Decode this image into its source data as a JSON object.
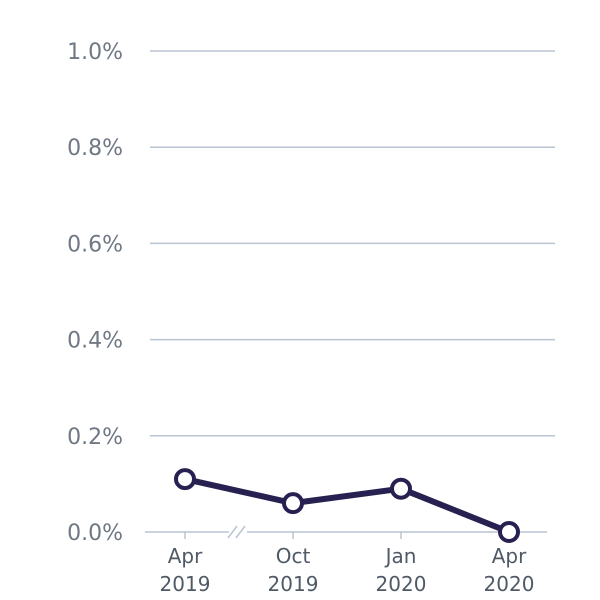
{
  "chart_data": {
    "type": "line",
    "title": "",
    "xlabel": "",
    "ylabel": "",
    "categories": [
      [
        "Apr",
        "2019"
      ],
      [
        "Oct",
        "2019"
      ],
      [
        "Jan",
        "2020"
      ],
      [
        "Apr",
        "2020"
      ]
    ],
    "series": [
      {
        "name": "",
        "values": [
          0.11,
          0.06,
          0.09,
          0.0
        ]
      }
    ],
    "ylim": [
      0,
      1.0
    ],
    "yticks": [
      0,
      0.2,
      0.4,
      0.6,
      0.8,
      1.0
    ],
    "ytick_labels": [
      "0.0%",
      "0.2%",
      "0.4%",
      "0.6%",
      "0.8%",
      "1.0%"
    ],
    "axis_break_after_first": true,
    "grid": true,
    "colors": {
      "line": "#262150",
      "grid": "#b8c4d2",
      "marker_fill": "#ffffff"
    }
  }
}
